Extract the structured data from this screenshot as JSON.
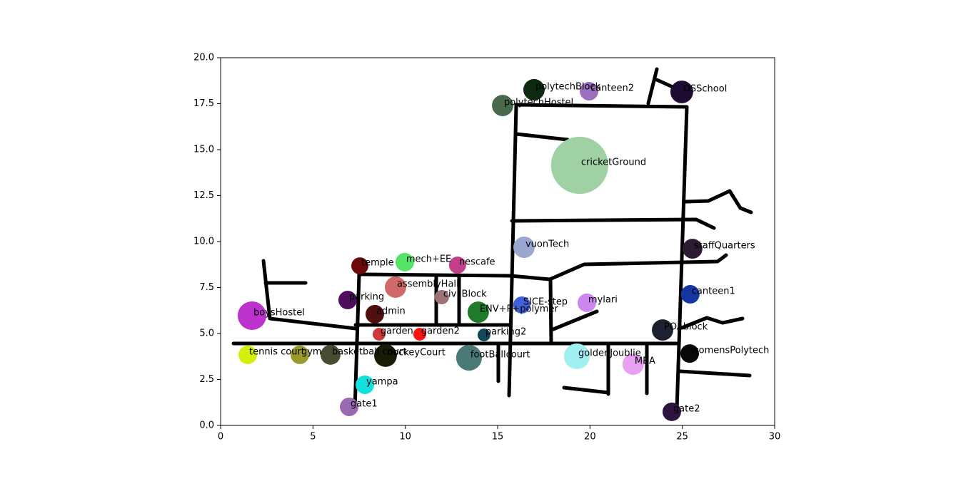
{
  "chart_data": {
    "type": "scatter",
    "labels": [
      "polytechBlock",
      "canteen2",
      "DSSchool",
      "polytechHostel",
      "cricketGround",
      "vuonTech",
      "staffQuarters",
      "temple",
      "mech+EE",
      "nescafe",
      "assemblyHall",
      "civilBlock",
      "parking",
      "canteen1",
      "mylari",
      "SICE-step",
      "ENV+P+polymer",
      "boysHostel",
      "admin",
      "garden",
      "garden2",
      "parking2",
      "POAblock",
      "tennis court",
      "gym",
      "basketball court",
      "hockeyCourt",
      "footBallcourt",
      "goldenJoublie",
      "MBA",
      "womensPolytech",
      "yampa",
      "gate1",
      "gate2"
    ],
    "x": [
      16.97,
      19.95,
      24.97,
      15.27,
      19.44,
      16.43,
      25.55,
      7.54,
      9.97,
      12.83,
      9.47,
      11.98,
      6.88,
      25.43,
      19.83,
      16.31,
      13.95,
      1.7,
      8.35,
      8.58,
      10.78,
      14.26,
      23.93,
      1.47,
      4.29,
      5.95,
      8.93,
      13.45,
      19.29,
      22.34,
      25.4,
      7.81,
      6.96,
      24.43
    ],
    "y": [
      18.26,
      18.18,
      18.14,
      17.4,
      14.15,
      9.69,
      9.61,
      8.68,
      8.88,
      8.72,
      7.52,
      6.98,
      6.82,
      7.13,
      6.67,
      6.55,
      6.16,
      5.97,
      6.05,
      4.96,
      4.96,
      4.92,
      5.19,
      3.84,
      3.84,
      3.84,
      3.8,
      3.68,
      3.76,
      3.33,
      3.91,
      2.21,
      1.01,
      0.74
    ],
    "sizes": [
      530,
      400,
      600,
      530,
      3800,
      530,
      460,
      340,
      400,
      340,
      530,
      240,
      400,
      400,
      400,
      340,
      530,
      950,
      400,
      190,
      190,
      190,
      530,
      400,
      400,
      460,
      600,
      770,
      770,
      530,
      400,
      400,
      400,
      400
    ],
    "colors": [
      "#0d2a10",
      "#9b6fbf",
      "#1e0a33",
      "#476b4a",
      "#9fd1a5",
      "#9aa8d0",
      "#2d1a33",
      "#6b0a0a",
      "#55e36a",
      "#c23f8a",
      "#d06a6a",
      "#9c7474",
      "#4d0f5c",
      "#1535a3",
      "#cc88ee",
      "#4060d8",
      "#1f7a2a",
      "#bb33cc",
      "#4f1010",
      "#cc3a3a",
      "#ff1111",
      "#13475a",
      "#1c2230",
      "#d4f00a",
      "#9a9a2a",
      "#474c33",
      "#161c05",
      "#4a7a78",
      "#a0f0f2",
      "#e8a0f0",
      "#080808",
      "#12e0e0",
      "#9a6ab0",
      "#2d1540"
    ],
    "xlim": [
      0,
      30
    ],
    "xticks": [
      0,
      5,
      10,
      15,
      20,
      25,
      30
    ],
    "ylim": [
      0,
      20
    ],
    "yticks": [
      {
        "value": 0,
        "label": "0.0"
      },
      {
        "value": 2.5,
        "label": "2.5"
      },
      {
        "value": 5,
        "label": "5.0"
      },
      {
        "value": 7.5,
        "label": "7.5"
      },
      {
        "value": 10,
        "label": "10.0"
      },
      {
        "value": 12.5,
        "label": "12.5"
      },
      {
        "value": 15,
        "label": "15.0"
      },
      {
        "value": 17.5,
        "label": "17.5"
      },
      {
        "value": 20,
        "label": "20.0"
      }
    ]
  }
}
